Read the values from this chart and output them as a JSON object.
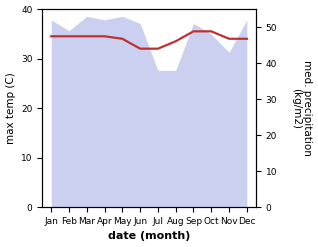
{
  "months": [
    "Jan",
    "Feb",
    "Mar",
    "Apr",
    "May",
    "Jun",
    "Jul",
    "Aug",
    "Sep",
    "Oct",
    "Nov",
    "Dec"
  ],
  "month_x": [
    0,
    1,
    2,
    3,
    4,
    5,
    6,
    7,
    8,
    9,
    10,
    11
  ],
  "temp_line": [
    34.5,
    34.5,
    34.5,
    34.5,
    34.0,
    32.0,
    32.0,
    33.5,
    35.5,
    35.5,
    34.0,
    34.0
  ],
  "precip_mm": [
    52,
    49,
    53,
    52,
    53,
    51,
    38,
    38,
    51,
    48,
    43,
    52
  ],
  "temp_ylim": [
    0,
    40
  ],
  "precip_ylim": [
    0,
    55
  ],
  "area_color": "#b0b8e8",
  "area_alpha": 0.65,
  "line_color": "#c03030",
  "line_width": 1.6,
  "xlabel": "date (month)",
  "ylabel_left": "max temp (C)",
  "ylabel_right": "med. precipitation\n(kg/m2)",
  "tick_fontsize": 6.5,
  "label_fontsize": 7.5,
  "xlabel_fontsize": 8
}
